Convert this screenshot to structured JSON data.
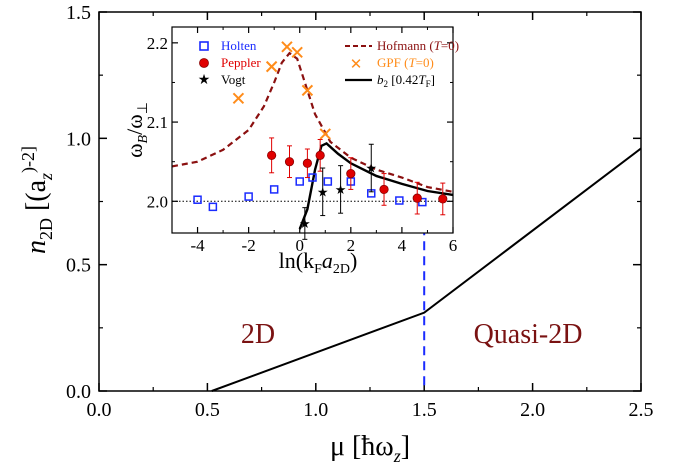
{
  "chart_data": [
    {
      "type": "line",
      "xlabel": "μ [ħω",
      "xlabel_sub": "z",
      "xlabel_close": "]",
      "ylabel": "n",
      "ylabel_sub": "2D",
      "ylabel_rest": " [(a",
      "ylabel_sub2": "z",
      "ylabel_sup": ")-2]",
      "xlim": [
        0.0,
        2.5
      ],
      "ylim": [
        0.0,
        1.5
      ],
      "xticks": [
        0.0,
        0.5,
        1.0,
        1.5,
        2.0,
        2.5
      ],
      "xtick_labels": [
        "0.0",
        "0.5",
        "1.0",
        "1.5",
        "2.0",
        "2.5"
      ],
      "yticks": [
        0.0,
        0.5,
        1.0,
        1.5
      ],
      "ytick_labels": [
        "0.0",
        "0.5",
        "1.0",
        "1.5"
      ],
      "series": [
        {
          "values": [
            [
              0.52,
              0.0
            ],
            [
              1.5,
              0.31
            ],
            [
              2.5,
              0.96
            ]
          ],
          "color": "#000000"
        }
      ],
      "annotations": {
        "divider_x": 1.5,
        "divider_color": "#1a2bff",
        "left_region": "2D",
        "right_region": "Quasi-2D"
      }
    },
    {
      "type": "scatter",
      "role": "inset",
      "xlabel": "ln(k",
      "xlabel_sub": "F",
      "xlabel_mid": "a",
      "xlabel_sub2": "2D",
      "xlabel_close": ")",
      "ylabel": "ω",
      "ylabel_sub": "B",
      "ylabel_mid": "/ω",
      "ylabel_sub2": "⊥",
      "xlim": [
        -5,
        6
      ],
      "ylim": [
        1.96,
        2.22
      ],
      "xticks": [
        -4,
        -2,
        0,
        2,
        4,
        6
      ],
      "xtick_labels": [
        "-4",
        "-2",
        "0",
        "2",
        "4",
        "6"
      ],
      "yticks": [
        2.0,
        2.1,
        2.2
      ],
      "ytick_labels": [
        "2.0",
        "2.1",
        "2.2"
      ],
      "reference_y": 2.0,
      "legend": [
        {
          "name": "Holten",
          "color": "#1a2bff",
          "marker": "square"
        },
        {
          "name": "Peppler",
          "color": "#e00000",
          "marker": "circle"
        },
        {
          "name": "Vogt",
          "color": "#000000",
          "marker": "star"
        },
        {
          "name": "Hofmann (T=0)",
          "prefix": "Hofmann (",
          "ital": "T",
          "suffix": "=0)",
          "color": "#8b1010",
          "marker": "dash"
        },
        {
          "name": "GPF (T=0)",
          "prefix": "GPF (",
          "ital": "T",
          "suffix": "=0)",
          "color": "#ff8c1a",
          "marker": "x"
        },
        {
          "name": "b2 [0.42TF]",
          "prefix": "b",
          "sub": "2",
          "mid": " [0.42",
          "ital": "T",
          "sub2": "F",
          "suffix": "]",
          "color": "#000000",
          "marker": "line"
        }
      ],
      "series": [
        {
          "name": "Holten",
          "points": [
            [
              -4.0,
              2.002
            ],
            [
              -3.4,
              1.993
            ],
            [
              -2.0,
              2.006
            ],
            [
              -1.0,
              2.015
            ],
            [
              0.0,
              2.025
            ],
            [
              0.5,
              2.03
            ],
            [
              1.1,
              2.025
            ],
            [
              2.0,
              2.025
            ],
            [
              2.8,
              2.01
            ],
            [
              3.9,
              2.001
            ],
            [
              4.8,
              1.999
            ]
          ]
        },
        {
          "name": "Peppler",
          "points": [
            [
              -1.1,
              2.058,
              0.022
            ],
            [
              -0.4,
              2.05,
              0.02
            ],
            [
              0.3,
              2.048,
              0.018
            ],
            [
              0.8,
              2.058,
              0.02
            ],
            [
              2.0,
              2.035,
              0.02
            ],
            [
              3.3,
              2.015,
              0.02
            ],
            [
              4.6,
              2.004,
              0.02
            ],
            [
              5.6,
              2.003,
              0.02
            ]
          ]
        },
        {
          "name": "Vogt",
          "points": [
            [
              0.2,
              1.972,
              0.02
            ],
            [
              0.9,
              2.012,
              0.03
            ],
            [
              1.6,
              2.015,
              0.03
            ],
            [
              2.8,
              2.042,
              0.03
            ]
          ]
        },
        {
          "name": "GPF (T=0)",
          "points": [
            [
              -2.4,
              2.13
            ],
            [
              -1.1,
              2.17
            ],
            [
              -0.5,
              2.195
            ],
            [
              -0.1,
              2.188
            ],
            [
              0.3,
              2.14
            ],
            [
              1.0,
              2.085
            ]
          ]
        },
        {
          "name": "Hofmann (T=0)",
          "curve": [
            [
              -5,
              2.044
            ],
            [
              -4,
              2.05
            ],
            [
              -3,
              2.065
            ],
            [
              -2,
              2.09
            ],
            [
              -1.4,
              2.12
            ],
            [
              -1,
              2.15
            ],
            [
              -0.7,
              2.175
            ],
            [
              -0.4,
              2.187
            ],
            [
              -0.1,
              2.18
            ],
            [
              0.2,
              2.15
            ],
            [
              0.6,
              2.11
            ],
            [
              1.2,
              2.075
            ],
            [
              2,
              2.055
            ],
            [
              3,
              2.04
            ],
            [
              4,
              2.03
            ],
            [
              5,
              2.018
            ],
            [
              6,
              2.012
            ]
          ]
        },
        {
          "name": "b2 [0.42TF]",
          "curve": [
            [
              0.0,
              1.965
            ],
            [
              0.3,
              1.99
            ],
            [
              0.6,
              2.04
            ],
            [
              0.85,
              2.07
            ],
            [
              1.05,
              2.073
            ],
            [
              1.5,
              2.06
            ],
            [
              2.0,
              2.048
            ],
            [
              3.0,
              2.032
            ],
            [
              4.0,
              2.022
            ],
            [
              5.0,
              2.013
            ],
            [
              6.0,
              2.008
            ]
          ]
        }
      ]
    }
  ]
}
